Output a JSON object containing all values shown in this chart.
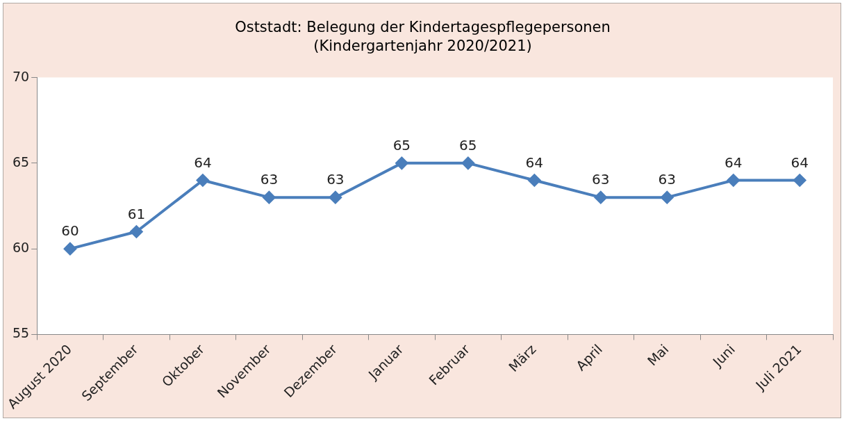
{
  "chart_data": {
    "type": "line",
    "title": "Oststadt: Belegung der Kindertagespflegepersonen\n(Kindergartenjahr 2020/2021)",
    "categories": [
      "August 2020",
      "September",
      "Oktober",
      "November",
      "Dezember",
      "Januar",
      "Februar",
      "März",
      "April",
      "Mai",
      "Juni",
      "Juli 2021"
    ],
    "series": [
      {
        "color": "#4a7ebb",
        "values": [
          60,
          61,
          64,
          63,
          63,
          65,
          65,
          64,
          63,
          63,
          64,
          64
        ]
      }
    ],
    "ylim": [
      55,
      70
    ],
    "yticks": [
      55,
      60,
      65,
      70
    ],
    "grid": false,
    "legend": false,
    "marker": "diamond",
    "line_style": "solid",
    "data_labels": true
  }
}
